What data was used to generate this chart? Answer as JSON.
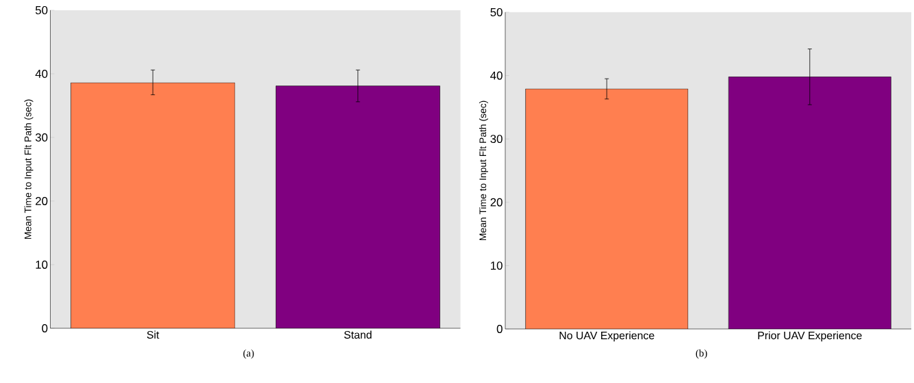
{
  "chart_data": [
    {
      "type": "bar",
      "ylabel": "Mean Time to Input Flt Path (sec)",
      "categories": [
        "Sit",
        "Stand"
      ],
      "values": [
        38.6,
        38.1
      ],
      "colors": [
        "#ff7f50",
        "#800080"
      ],
      "errors": [
        [
          36.7,
          40.6
        ],
        [
          35.6,
          40.6
        ]
      ],
      "ylim": [
        0,
        50
      ],
      "yticks": [
        0,
        10,
        20,
        30,
        40,
        50
      ],
      "annotations": [
        "(a)"
      ]
    },
    {
      "type": "bar",
      "ylabel": "Mean Time to Input Flt Path (sec)",
      "categories": [
        "No UAV Experience",
        "Prior UAV Experience"
      ],
      "values": [
        37.9,
        39.8
      ],
      "colors": [
        "#ff7f50",
        "#800080"
      ],
      "errors": [
        [
          36.3,
          39.5
        ],
        [
          35.4,
          44.2
        ]
      ],
      "ylim": [
        0,
        50
      ],
      "yticks": [
        0,
        10,
        20,
        30,
        40,
        50
      ],
      "annotations": [
        "(b)"
      ]
    }
  ]
}
